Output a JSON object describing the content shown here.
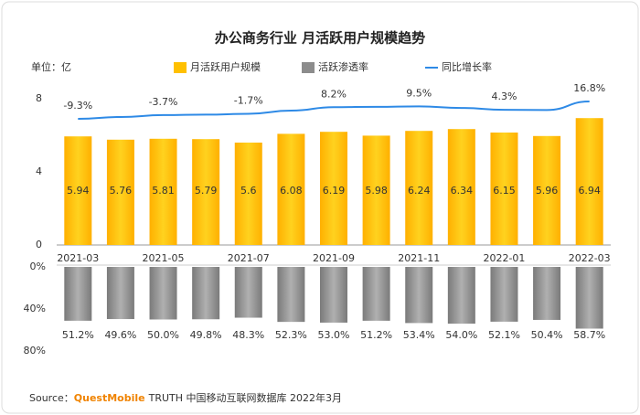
{
  "chart_data": {
    "type": "bar",
    "title": "办公商务行业 月活跃用户规模趋势",
    "unit": "单位：亿",
    "categories": [
      "2021-03",
      null,
      "2021-05",
      null,
      "2021-07",
      null,
      "2021-09",
      null,
      "2021-11",
      null,
      "2022-01",
      null,
      "2022-03"
    ],
    "ylim": [
      0,
      8
    ],
    "yticks": [
      0,
      4,
      8
    ],
    "y2lim": [
      0,
      80
    ],
    "y2ticks": [
      {
        "value": 0,
        "label": "0%"
      },
      {
        "value": 40,
        "label": "40%"
      },
      {
        "value": 80,
        "label": "80%"
      }
    ],
    "series": [
      {
        "name": "月活跃用户规模",
        "color": "#FFC000",
        "values": [
          5.94,
          5.76,
          5.81,
          5.79,
          5.6,
          6.08,
          6.19,
          5.98,
          6.24,
          6.34,
          6.15,
          5.96,
          6.94
        ]
      },
      {
        "name": "活跃渗透率",
        "color": "#8C8C8C",
        "axis": "y2",
        "values": [
          51.2,
          49.6,
          50.0,
          49.8,
          48.3,
          52.3,
          53.0,
          51.2,
          53.4,
          54.0,
          52.1,
          50.4,
          58.7
        ],
        "value_labels": [
          "51.2%",
          "49.6%",
          "50.0%",
          "49.8%",
          "48.3%",
          "52.3%",
          "53.0%",
          "51.2%",
          "53.4%",
          "54.0%",
          "52.1%",
          "50.4%",
          "58.7%"
        ]
      },
      {
        "name": "同比增长率",
        "color": "#2E8AE6",
        "type": "line",
        "values": [
          -9.3,
          -6.5,
          -3.7,
          -3.0,
          -1.7,
          3.0,
          8.2,
          8.8,
          9.5,
          7.0,
          4.3,
          4.0,
          16.8
        ],
        "value_labels": [
          "-9.3%",
          null,
          "-3.7%",
          null,
          "-1.7%",
          null,
          "8.2%",
          null,
          "9.5%",
          null,
          "4.3%",
          null,
          "16.8%"
        ]
      }
    ],
    "source_label": "Source：",
    "source_brand": "QuestMobile",
    "source_text": "TRUTH 中国移动互联网数据库 2022年3月"
  }
}
